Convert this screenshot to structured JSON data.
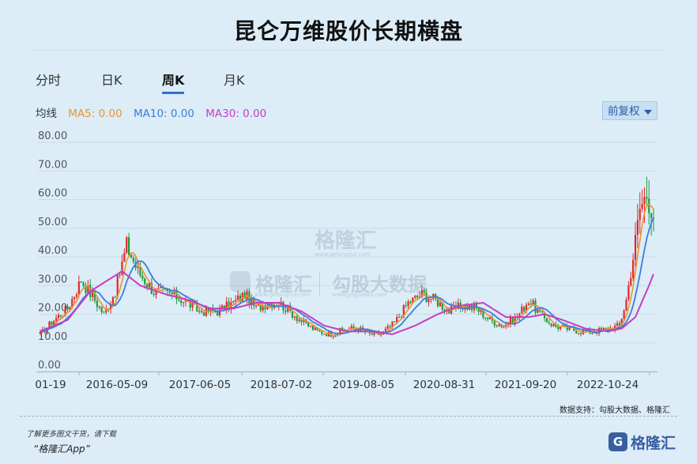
{
  "title": "昆仑万维股价长期横盘",
  "tabs": [
    {
      "label": "分时",
      "active": false
    },
    {
      "label": "日K",
      "active": false
    },
    {
      "label": "周K",
      "active": true
    },
    {
      "label": "月K",
      "active": false
    }
  ],
  "ma": {
    "prefix": "均线",
    "ma5": "MA5: 0.00",
    "ma10": "MA10: 0.00",
    "ma30": "MA30: 0.00",
    "colors": {
      "ma5": "#e8962e",
      "ma10": "#3a7de0",
      "ma30": "#c83cc0"
    }
  },
  "adjust_button": "前复权",
  "watermark": {
    "w1": "格隆汇",
    "w1sub": "www.gelonghui.com",
    "w2a": "格隆汇",
    "w2b": "勾股大数据",
    "w2asub": "www.gelonghui.com",
    "w2bsub": "www.gogudata.com"
  },
  "source": "数据支持：勾股大数据、格隆汇",
  "promo_line1": "了解更多图文干货，请下载",
  "promo_line2": "“格隆汇App”",
  "brand_name": "格隆汇",
  "colors": {
    "up": "#e02a2a",
    "down": "#1f9a3a",
    "ma5": "#e8962e",
    "ma10": "#3a7de0",
    "ma30": "#c83cc0"
  },
  "chart_data": {
    "type": "candlestick",
    "y_ticks": [
      "80.00",
      "70.00",
      "60.00",
      "50.00",
      "40.00",
      "30.00",
      "20.00",
      "10.00",
      "0.00"
    ],
    "ylim": [
      0,
      80
    ],
    "x_ticks": [
      "01-19",
      "2016-05-09",
      "2017-06-05",
      "2018-07-02",
      "2019-08-05",
      "2020-08-31",
      "2021-09-20",
      "2022-10-24"
    ],
    "grid": true,
    "series": [
      {
        "name": "MA5"
      },
      {
        "name": "MA10"
      },
      {
        "name": "MA30"
      }
    ],
    "approx_weekly_close": [
      [
        0,
        13
      ],
      [
        6,
        18
      ],
      [
        12,
        22
      ],
      [
        18,
        32
      ],
      [
        24,
        25
      ],
      [
        28,
        20
      ],
      [
        33,
        28
      ],
      [
        38,
        44
      ],
      [
        43,
        35
      ],
      [
        50,
        28
      ],
      [
        58,
        27
      ],
      [
        65,
        24
      ],
      [
        70,
        21
      ],
      [
        78,
        21
      ],
      [
        85,
        24
      ],
      [
        90,
        27
      ],
      [
        95,
        22
      ],
      [
        100,
        24
      ],
      [
        105,
        24
      ],
      [
        110,
        21
      ],
      [
        116,
        17
      ],
      [
        122,
        14
      ],
      [
        128,
        13
      ],
      [
        135,
        15
      ],
      [
        140,
        15
      ],
      [
        145,
        13
      ],
      [
        150,
        13
      ],
      [
        156,
        17
      ],
      [
        162,
        24
      ],
      [
        168,
        27
      ],
      [
        174,
        25
      ],
      [
        180,
        21
      ],
      [
        186,
        23
      ],
      [
        192,
        22
      ],
      [
        198,
        18
      ],
      [
        204,
        16
      ],
      [
        210,
        19
      ],
      [
        215,
        25
      ],
      [
        220,
        20
      ],
      [
        226,
        16
      ],
      [
        232,
        15
      ],
      [
        238,
        14
      ],
      [
        244,
        14
      ],
      [
        250,
        15
      ],
      [
        255,
        16
      ],
      [
        258,
        25
      ],
      [
        261,
        40
      ],
      [
        264,
        57
      ],
      [
        267,
        62
      ],
      [
        270,
        55
      ]
    ],
    "approx_ma30": [
      [
        0,
        14
      ],
      [
        12,
        18
      ],
      [
        22,
        28
      ],
      [
        30,
        32
      ],
      [
        36,
        35
      ],
      [
        44,
        30
      ],
      [
        55,
        27
      ],
      [
        65,
        25
      ],
      [
        75,
        22
      ],
      [
        85,
        22
      ],
      [
        95,
        24
      ],
      [
        105,
        24
      ],
      [
        115,
        21
      ],
      [
        125,
        16
      ],
      [
        135,
        14
      ],
      [
        145,
        14
      ],
      [
        155,
        13
      ],
      [
        165,
        16
      ],
      [
        175,
        20
      ],
      [
        185,
        23
      ],
      [
        195,
        24
      ],
      [
        205,
        19
      ],
      [
        215,
        19
      ],
      [
        222,
        20
      ],
      [
        230,
        18
      ],
      [
        240,
        15
      ],
      [
        250,
        14
      ],
      [
        256,
        15
      ],
      [
        262,
        19
      ],
      [
        268,
        30
      ],
      [
        270,
        34
      ]
    ]
  }
}
